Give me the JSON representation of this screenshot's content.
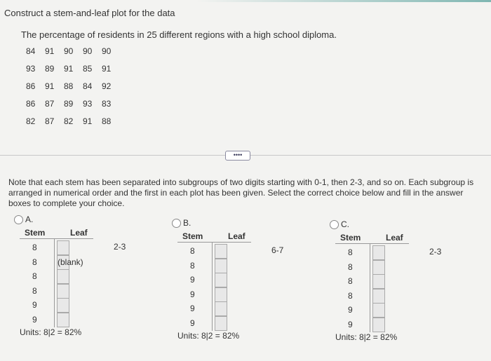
{
  "question": {
    "title": "Construct a stem-and-leaf plot for the data",
    "description": "The percentage of residents in 25 different regions with a high school diploma.",
    "data": [
      [
        84,
        91,
        90,
        90,
        90
      ],
      [
        93,
        89,
        91,
        85,
        91
      ],
      [
        86,
        91,
        88,
        84,
        92
      ],
      [
        86,
        87,
        89,
        93,
        83
      ],
      [
        82,
        87,
        82,
        91,
        88
      ]
    ]
  },
  "note": "Note that each stem has been separated into subgroups of two digits starting with 0-1, then 2-3, and so on. Each subgroup is arranged in numerical order and the first in each plot has been given. Select the correct choice below and fill in the answer boxes to complete your choice.",
  "choices": [
    {
      "label": "A.",
      "stem_header": "Stem",
      "leaf_header": "Leaf",
      "stems": [
        8,
        8,
        8,
        8,
        9,
        9
      ],
      "first_leaves": "2-3",
      "blank_hint": "(blank)",
      "units": "Units: 8|2 = 82%"
    },
    {
      "label": "B.",
      "stem_header": "Stem",
      "leaf_header": "Leaf",
      "stems": [
        8,
        8,
        9,
        9,
        9,
        9
      ],
      "first_leaves": "6-7",
      "units": "Units: 8|2 = 82%"
    },
    {
      "label": "C.",
      "stem_header": "Stem",
      "leaf_header": "Leaf",
      "stems": [
        8,
        8,
        8,
        8,
        9,
        9
      ],
      "first_leaves": "2-3",
      "units": "Units: 8|2 = 82%"
    }
  ]
}
